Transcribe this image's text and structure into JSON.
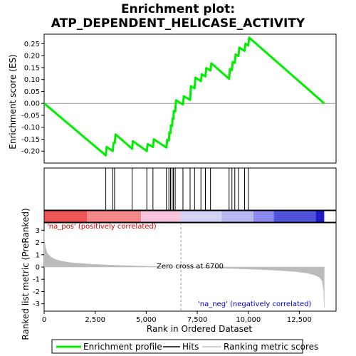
{
  "title_line1": "Enrichment plot:",
  "title_line2": "ATP_DEPENDENT_HELICASE_ACTIVITY",
  "chart_data": {
    "type": "line",
    "es_panel": {
      "ylabel": "Enrichment score (ES)",
      "ylim": [
        -0.25,
        0.29
      ],
      "yticks": [
        0.25,
        0.2,
        0.15,
        0.1,
        0.05,
        0.0,
        -0.05,
        -0.1,
        -0.15,
        -0.2
      ],
      "ytick_labels": [
        "0.25",
        "0.20",
        "0.15",
        "0.10",
        "0.05",
        "0.00",
        "-0.05",
        "-0.10",
        "-0.15",
        "-0.20"
      ],
      "grid": false,
      "zero_line": true
    },
    "x": {
      "label": "Rank in Ordered Dataset",
      "xlim": [
        0,
        14300
      ],
      "ticks": [
        0,
        2500,
        5000,
        7500,
        10000,
        12500
      ],
      "tick_labels": [
        "0",
        "2,500",
        "5,000",
        "7,500",
        "10,000",
        "12,500"
      ]
    },
    "series": [
      {
        "name": "Enrichment profile",
        "color": "#00ee00",
        "x": [
          0,
          3020,
          3060,
          3360,
          3400,
          3460,
          3500,
          4310,
          4350,
          5030,
          5070,
          5330,
          5370,
          5990,
          6030,
          6110,
          6130,
          6190,
          6210,
          6270,
          6290,
          6330,
          6350,
          6420,
          6460,
          6800,
          6840,
          7150,
          7190,
          7370,
          7410,
          7680,
          7720,
          7900,
          7940,
          8150,
          8190,
          9060,
          9100,
          9200,
          9240,
          9340,
          9380,
          9520,
          9560,
          9820,
          9860,
          10000,
          10040,
          13720
        ],
        "y": [
          0.0,
          -0.218,
          -0.182,
          -0.2,
          -0.166,
          -0.166,
          -0.13,
          -0.19,
          -0.158,
          -0.2,
          -0.17,
          -0.183,
          -0.15,
          -0.185,
          -0.152,
          -0.156,
          -0.122,
          -0.125,
          -0.092,
          -0.095,
          -0.063,
          -0.065,
          -0.032,
          -0.035,
          0.013,
          -0.005,
          0.03,
          0.015,
          0.072,
          0.063,
          0.108,
          0.093,
          0.122,
          0.113,
          0.148,
          0.138,
          0.168,
          0.103,
          0.144,
          0.139,
          0.174,
          0.17,
          0.205,
          0.199,
          0.234,
          0.22,
          0.25,
          0.243,
          0.276,
          0.0
        ]
      },
      {
        "name": "Hits",
        "color": "#000000",
        "hit_ranks": [
          3020,
          3360,
          3450,
          4310,
          5030,
          5330,
          5990,
          6110,
          6190,
          6270,
          6330,
          6420,
          6800,
          7150,
          7370,
          7680,
          7900,
          8150,
          9060,
          9200,
          9340,
          9520,
          9820,
          10000
        ]
      },
      {
        "name": "Ranking metric scores",
        "color": "#bbbbbb",
        "x": [
          0,
          20,
          60,
          150,
          300,
          500,
          800,
          1200,
          1700,
          2300,
          3000,
          4000,
          5000,
          6000,
          6700,
          7500,
          8500,
          9500,
          10500,
          11500,
          12300,
          12900,
          13300,
          13500,
          13620,
          13690,
          13720
        ],
        "y": [
          2.9,
          2.2,
          1.6,
          1.15,
          0.85,
          0.65,
          0.5,
          0.38,
          0.3,
          0.23,
          0.17,
          0.11,
          0.06,
          0.02,
          0.0,
          -0.04,
          -0.09,
          -0.14,
          -0.2,
          -0.28,
          -0.37,
          -0.5,
          -0.68,
          -0.85,
          -1.15,
          -1.9,
          -3.3
        ]
      }
    ],
    "metric_panel": {
      "ylabel": "Ranked list metric (PreRanked)",
      "ylim": [
        -3.6,
        3.6
      ],
      "yticks": [
        3,
        2,
        1,
        0,
        -1,
        -2,
        -3
      ],
      "ytick_labels": [
        "3",
        "2",
        "1",
        "0",
        "-1",
        "-2",
        "-3"
      ],
      "pos_label": "'na_pos' (positively correlated)",
      "pos_color": "#e00000",
      "neg_label": "'na_neg' (negatively correlated)",
      "neg_color": "#0000cc",
      "zero_cross_label": "Zero cross at 6700",
      "zero_cross_rank": 6700
    },
    "heat_bar": {
      "segments": [
        {
          "end": 2100,
          "color": "#ee5555"
        },
        {
          "end": 4750,
          "color": "#f58888"
        },
        {
          "end": 6700,
          "color": "#f8c3dd"
        },
        {
          "end": 8700,
          "color": "#d3d3f3"
        },
        {
          "end": 10250,
          "color": "#b7b7f2"
        },
        {
          "end": 11250,
          "color": "#8a8af0"
        },
        {
          "end": 13300,
          "color": "#5252dd"
        },
        {
          "end": 13720,
          "color": "#1e1ec2"
        }
      ]
    },
    "legend": {
      "placement": "bottom",
      "items": [
        "Enrichment profile",
        "Hits",
        "Ranking metric scores"
      ]
    }
  }
}
